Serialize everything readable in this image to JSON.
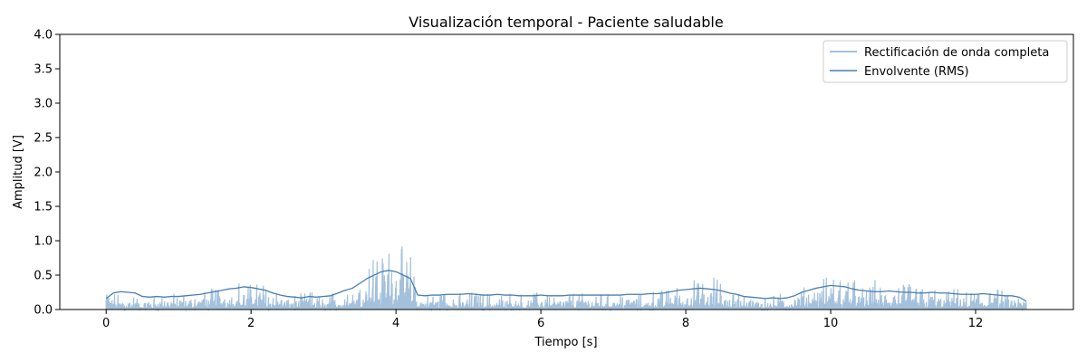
{
  "chart_data": {
    "type": "line",
    "title": "Visualización temporal - Paciente saludable",
    "xlabel": "Tiempo [s]",
    "ylabel": "Amplitud [V]",
    "xlim": [
      -0.64,
      13.35
    ],
    "ylim": [
      0,
      4.0
    ],
    "xticks": [
      0,
      2,
      4,
      6,
      8,
      10,
      12
    ],
    "yticks": [
      0.0,
      0.5,
      1.0,
      1.5,
      2.0,
      2.5,
      3.0,
      3.5,
      4.0
    ],
    "xtick_labels": [
      "0",
      "2",
      "4",
      "6",
      "8",
      "10",
      "12"
    ],
    "ytick_labels": [
      "0.0",
      "0.5",
      "1.0",
      "1.5",
      "2.0",
      "2.5",
      "3.0",
      "3.5",
      "4.0"
    ],
    "legend_position": "top-right",
    "grid": false,
    "series": [
      {
        "name": "Rectificación de onda completa",
        "color": "#a4c1dc",
        "style": "dense-spikes",
        "x": [
          0.0,
          0.1,
          0.2,
          0.3,
          0.4,
          0.5,
          0.6,
          0.7,
          0.8,
          0.9,
          1.0,
          1.1,
          1.2,
          1.3,
          1.4,
          1.5,
          1.6,
          1.7,
          1.8,
          1.9,
          2.0,
          2.1,
          2.2,
          2.3,
          2.4,
          2.5,
          2.6,
          2.7,
          2.8,
          2.9,
          3.0,
          3.1,
          3.2,
          3.3,
          3.4,
          3.5,
          3.6,
          3.7,
          3.8,
          3.9,
          4.0,
          4.1,
          4.2,
          4.3,
          4.4,
          4.5,
          4.6,
          4.7,
          4.8,
          4.9,
          5.0,
          5.1,
          5.2,
          5.3,
          5.4,
          5.5,
          5.6,
          5.7,
          5.8,
          5.9,
          6.0,
          6.1,
          6.2,
          6.3,
          6.4,
          6.5,
          6.6,
          6.7,
          6.8,
          6.9,
          7.0,
          7.1,
          7.2,
          7.3,
          7.4,
          7.5,
          7.6,
          7.7,
          7.8,
          7.9,
          8.0,
          8.1,
          8.2,
          8.3,
          8.4,
          8.5,
          8.6,
          8.7,
          8.8,
          8.9,
          9.0,
          9.1,
          9.2,
          9.3,
          9.4,
          9.5,
          9.6,
          9.7,
          9.8,
          9.9,
          10.0,
          10.1,
          10.2,
          10.3,
          10.4,
          10.5,
          10.6,
          10.7,
          10.8,
          10.9,
          11.0,
          11.1,
          11.2,
          11.3,
          11.4,
          11.5,
          11.6,
          11.7,
          11.8,
          11.9,
          12.0,
          12.1,
          12.2,
          12.3,
          12.4,
          12.5,
          12.6,
          12.7
        ],
        "values": [
          0.38,
          0.22,
          0.26,
          0.21,
          0.19,
          0.15,
          0.19,
          0.21,
          0.2,
          0.24,
          0.22,
          0.22,
          0.28,
          0.24,
          0.3,
          0.33,
          0.33,
          0.35,
          0.41,
          0.38,
          0.36,
          0.45,
          0.37,
          0.3,
          0.26,
          0.24,
          0.21,
          0.24,
          0.28,
          0.22,
          0.18,
          0.23,
          0.29,
          0.35,
          0.41,
          0.5,
          0.65,
          0.88,
          0.75,
          0.99,
          0.91,
          0.93,
          0.82,
          0.22,
          0.2,
          0.22,
          0.23,
          0.25,
          0.25,
          0.24,
          0.27,
          0.25,
          0.24,
          0.23,
          0.26,
          0.22,
          0.25,
          0.23,
          0.21,
          0.24,
          0.29,
          0.23,
          0.21,
          0.22,
          0.24,
          0.24,
          0.25,
          0.23,
          0.26,
          0.22,
          0.25,
          0.23,
          0.24,
          0.26,
          0.22,
          0.25,
          0.28,
          0.29,
          0.33,
          0.37,
          0.35,
          0.44,
          0.38,
          0.41,
          0.5,
          0.37,
          0.28,
          0.25,
          0.25,
          0.24,
          0.2,
          0.22,
          0.2,
          0.24,
          0.23,
          0.25,
          0.32,
          0.38,
          0.42,
          0.45,
          0.54,
          0.49,
          0.53,
          0.47,
          0.35,
          0.3,
          0.44,
          0.35,
          0.42,
          0.35,
          0.41,
          0.38,
          0.35,
          0.32,
          0.33,
          0.28,
          0.27,
          0.3,
          0.3,
          0.24,
          0.29,
          0.31,
          0.28,
          0.3,
          0.27,
          0.24,
          0.2,
          0.19
        ]
      },
      {
        "name": "Envolvente (RMS)",
        "color": "#4a7fb0",
        "style": "line",
        "x": [
          0.0,
          0.1,
          0.2,
          0.3,
          0.4,
          0.5,
          0.6,
          0.7,
          0.8,
          0.9,
          1.0,
          1.1,
          1.2,
          1.3,
          1.4,
          1.5,
          1.6,
          1.7,
          1.8,
          1.9,
          2.0,
          2.1,
          2.2,
          2.3,
          2.4,
          2.5,
          2.6,
          2.7,
          2.8,
          2.9,
          3.0,
          3.1,
          3.2,
          3.3,
          3.4,
          3.5,
          3.6,
          3.7,
          3.8,
          3.9,
          4.0,
          4.1,
          4.2,
          4.3,
          4.4,
          4.5,
          4.6,
          4.7,
          4.8,
          4.9,
          5.0,
          5.1,
          5.2,
          5.3,
          5.4,
          5.5,
          5.6,
          5.7,
          5.8,
          5.9,
          6.0,
          6.1,
          6.2,
          6.3,
          6.4,
          6.5,
          6.6,
          6.7,
          6.8,
          6.9,
          7.0,
          7.1,
          7.2,
          7.3,
          7.4,
          7.5,
          7.6,
          7.7,
          7.8,
          7.9,
          8.0,
          8.1,
          8.2,
          8.3,
          8.4,
          8.5,
          8.6,
          8.7,
          8.8,
          8.9,
          9.0,
          9.1,
          9.2,
          9.3,
          9.4,
          9.5,
          9.6,
          9.7,
          9.8,
          9.9,
          10.0,
          10.1,
          10.2,
          10.3,
          10.4,
          10.5,
          10.6,
          10.7,
          10.8,
          10.9,
          11.0,
          11.1,
          11.2,
          11.3,
          11.4,
          11.5,
          11.6,
          11.7,
          11.8,
          11.9,
          12.0,
          12.1,
          12.2,
          12.3,
          12.4,
          12.5,
          12.6,
          12.7
        ],
        "values": [
          0.16,
          0.24,
          0.26,
          0.25,
          0.24,
          0.19,
          0.18,
          0.19,
          0.18,
          0.19,
          0.19,
          0.2,
          0.21,
          0.22,
          0.24,
          0.26,
          0.28,
          0.3,
          0.31,
          0.33,
          0.32,
          0.3,
          0.28,
          0.24,
          0.21,
          0.19,
          0.18,
          0.17,
          0.19,
          0.18,
          0.19,
          0.2,
          0.24,
          0.28,
          0.31,
          0.38,
          0.45,
          0.5,
          0.55,
          0.57,
          0.55,
          0.5,
          0.45,
          0.21,
          0.2,
          0.21,
          0.21,
          0.22,
          0.22,
          0.22,
          0.23,
          0.22,
          0.21,
          0.21,
          0.22,
          0.21,
          0.21,
          0.2,
          0.2,
          0.2,
          0.21,
          0.2,
          0.2,
          0.2,
          0.21,
          0.21,
          0.21,
          0.21,
          0.21,
          0.21,
          0.21,
          0.21,
          0.22,
          0.22,
          0.22,
          0.23,
          0.23,
          0.24,
          0.26,
          0.28,
          0.29,
          0.3,
          0.31,
          0.3,
          0.29,
          0.27,
          0.24,
          0.22,
          0.19,
          0.18,
          0.17,
          0.16,
          0.17,
          0.16,
          0.17,
          0.2,
          0.25,
          0.28,
          0.31,
          0.33,
          0.35,
          0.34,
          0.33,
          0.3,
          0.28,
          0.27,
          0.26,
          0.26,
          0.27,
          0.26,
          0.25,
          0.25,
          0.24,
          0.24,
          0.25,
          0.24,
          0.24,
          0.23,
          0.22,
          0.22,
          0.22,
          0.23,
          0.22,
          0.21,
          0.2,
          0.2,
          0.18,
          0.12
        ]
      }
    ]
  }
}
